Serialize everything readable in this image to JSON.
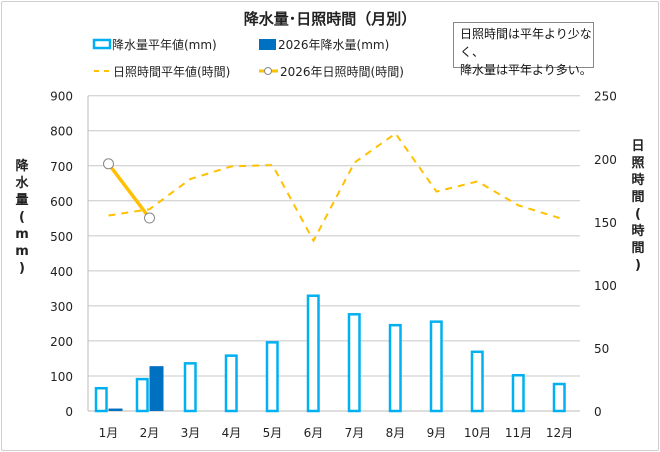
{
  "chart_data": {
    "type": "bar+line",
    "title": "降水量･日照時間（月別）",
    "categories": [
      "1月",
      "2月",
      "3月",
      "4月",
      "5月",
      "6月",
      "7月",
      "8月",
      "9月",
      "10月",
      "11月",
      "12月"
    ],
    "ylabel": "降水量(mm)",
    "y2label": "日照時間(時間)",
    "ylim": [
      0,
      900
    ],
    "yticks": [
      0,
      100,
      200,
      300,
      400,
      500,
      600,
      700,
      800,
      900
    ],
    "y2lim": [
      0,
      250
    ],
    "y2ticks": [
      0,
      50,
      100,
      150,
      200,
      250
    ],
    "grid": true,
    "legend_placement": "top",
    "series": [
      {
        "name": "降水量平年値(mm)",
        "kind": "bar-outline",
        "axis": "left",
        "color": "#00b0f0",
        "values": [
          65,
          91,
          136,
          158,
          196,
          329,
          276,
          245,
          255,
          169,
          102,
          77
        ]
      },
      {
        "name": "2026年降水量(mm)",
        "kind": "bar",
        "axis": "left",
        "color": "#0070c0",
        "values": [
          7,
          128,
          null,
          null,
          null,
          null,
          null,
          null,
          null,
          null,
          null,
          null
        ]
      },
      {
        "name": "日照時間平年値(時間)",
        "kind": "line-dashed",
        "axis": "right",
        "color": "#ffc000",
        "values": [
          155,
          160,
          184,
          194,
          195,
          135,
          197,
          220,
          174,
          182,
          163,
          153
        ]
      },
      {
        "name": "2026年日照時間(時間)",
        "kind": "line-marker",
        "axis": "right",
        "color": "#ffc000",
        "values": [
          196,
          153,
          null,
          null,
          null,
          null,
          null,
          null,
          null,
          null,
          null,
          null
        ]
      }
    ],
    "annotation": "日照時間は平年より少なく、\n降水量は平年より多い。"
  },
  "note": {
    "line1": "日照時間は平年より少なく、",
    "line2": "降水量は平年より多い。"
  }
}
